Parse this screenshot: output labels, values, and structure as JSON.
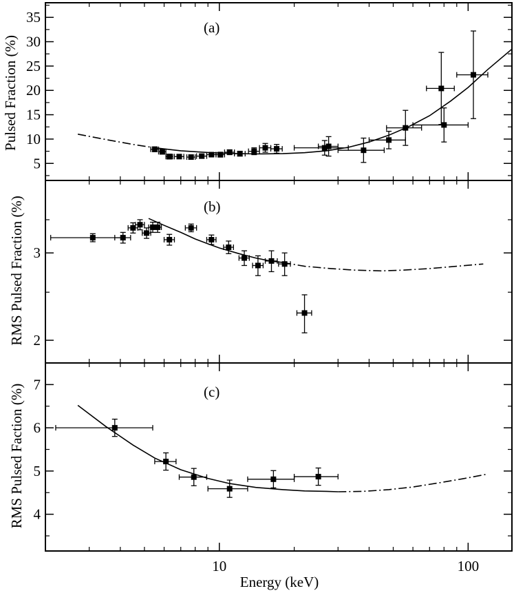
{
  "colors": {
    "line": "#000000",
    "background": "#ffffff"
  },
  "x_axis": {
    "label": "Energy (keV)",
    "scale": "log",
    "range": [
      2.0,
      150
    ],
    "major_ticks": [
      10,
      100
    ],
    "major_tick_labels": [
      "10",
      "100"
    ],
    "minor_ticks": [
      2,
      3,
      4,
      5,
      6,
      7,
      8,
      9,
      20,
      30,
      40,
      50,
      60,
      70,
      80,
      90
    ]
  },
  "chart_data": [
    {
      "type": "scatter",
      "panel_label": "(a)",
      "ylabel": "Pulsed Fraction (%)",
      "ylim": [
        1.5,
        38
      ],
      "y_ticks": [
        5,
        10,
        15,
        20,
        25,
        30,
        35
      ],
      "y_tick_labels": [
        "5",
        "10",
        "15",
        "20",
        "25",
        "30",
        "35"
      ],
      "y_minor_ticks": [
        2.5,
        7.5,
        12.5,
        17.5,
        22.5,
        27.5,
        32.5,
        37.5
      ],
      "y_scale": "linear",
      "points": [
        {
          "x": 5.5,
          "y": 7.9,
          "xerr": [
            0.2,
            0.2
          ],
          "yerr": 0.5
        },
        {
          "x": 5.9,
          "y": 7.4,
          "xerr": [
            0.2,
            0.2
          ],
          "yerr": 0.5
        },
        {
          "x": 6.3,
          "y": 6.4,
          "xerr": [
            0.2,
            0.2
          ],
          "yerr": 0.5
        },
        {
          "x": 6.9,
          "y": 6.4,
          "xerr": [
            0.3,
            0.3
          ],
          "yerr": 0.4
        },
        {
          "x": 7.7,
          "y": 6.3,
          "xerr": [
            0.3,
            0.3
          ],
          "yerr": 0.4
        },
        {
          "x": 8.5,
          "y": 6.5,
          "xerr": [
            0.4,
            0.4
          ],
          "yerr": 0.4
        },
        {
          "x": 9.3,
          "y": 6.8,
          "xerr": [
            0.4,
            0.4
          ],
          "yerr": 0.4
        },
        {
          "x": 10.1,
          "y": 6.8,
          "xerr": [
            0.4,
            0.4
          ],
          "yerr": 0.5
        },
        {
          "x": 11.0,
          "y": 7.3,
          "xerr": [
            0.5,
            0.5
          ],
          "yerr": 0.5
        },
        {
          "x": 12.1,
          "y": 7.0,
          "xerr": [
            0.6,
            0.6
          ],
          "yerr": 0.5
        },
        {
          "x": 13.8,
          "y": 7.5,
          "xerr": [
            0.7,
            0.7
          ],
          "yerr": 0.7
        },
        {
          "x": 15.3,
          "y": 8.2,
          "xerr": [
            0.8,
            0.8
          ],
          "yerr": 0.9
        },
        {
          "x": 17.0,
          "y": 8.0,
          "xerr": [
            0.9,
            0.9
          ],
          "yerr": 0.9
        },
        {
          "x": 26.5,
          "y": 8.2,
          "xerr": [
            6.5,
            6.5
          ],
          "yerr": 1.5
        },
        {
          "x": 27.5,
          "y": 8.5,
          "xerr": [
            2.5,
            2.5
          ],
          "yerr": 2.0
        },
        {
          "x": 38.0,
          "y": 7.7,
          "xerr": [
            8.0,
            8.0
          ],
          "yerr": 2.5
        },
        {
          "x": 48.0,
          "y": 9.8,
          "xerr": [
            8.0,
            8.0
          ],
          "yerr": 1.8
        },
        {
          "x": 56.0,
          "y": 12.3,
          "xerr": [
            9.0,
            9.0
          ],
          "yerr": 3.6
        },
        {
          "x": 78.0,
          "y": 20.4,
          "xerr": [
            10.0,
            10.0
          ],
          "yerr": 7.4
        },
        {
          "x": 80.0,
          "y": 12.9,
          "xerr": [
            20.0,
            20.0
          ],
          "yerr": 3.5
        },
        {
          "x": 105.0,
          "y": 23.2,
          "xerr": [
            15.0,
            15.0
          ],
          "yerr": 9.0
        }
      ],
      "model_curve_solid": [
        [
          5.5,
          8.2
        ],
        [
          7,
          7.6
        ],
        [
          9,
          7.25
        ],
        [
          11,
          7.05
        ],
        [
          14,
          6.95
        ],
        [
          18,
          7.0
        ],
        [
          22,
          7.2
        ],
        [
          27,
          7.6
        ],
        [
          33,
          8.3
        ],
        [
          40,
          9.4
        ],
        [
          48,
          10.8
        ],
        [
          58,
          12.6
        ],
        [
          70,
          14.8
        ],
        [
          85,
          17.8
        ],
        [
          100,
          20.6
        ],
        [
          120,
          24.3
        ],
        [
          150,
          28.5
        ]
      ],
      "model_curve_dashdot": [
        [
          2.7,
          11.0
        ],
        [
          3.5,
          9.9
        ],
        [
          4.5,
          8.9
        ],
        [
          5.5,
          8.2
        ]
      ]
    },
    {
      "type": "scatter",
      "panel_label": "(b)",
      "ylabel": "RMS Pulsed Fraction (%)",
      "ylim": [
        1.8,
        4.2
      ],
      "y_ticks": [
        2,
        3
      ],
      "y_tick_labels": [
        "2",
        "3"
      ],
      "y_minor_ticks": [
        2.5,
        3.5
      ],
      "y_scale": "log",
      "points": [
        {
          "x": 3.1,
          "y": 3.22,
          "xerr": [
            1.0,
            1.0
          ],
          "yerr": 0.06
        },
        {
          "x": 4.1,
          "y": 3.22,
          "xerr": [
            0.3,
            0.3
          ],
          "yerr": 0.08
        },
        {
          "x": 4.5,
          "y": 3.37,
          "xerr": [
            0.2,
            0.2
          ],
          "yerr": 0.08
        },
        {
          "x": 4.8,
          "y": 3.42,
          "xerr": [
            0.2,
            0.2
          ],
          "yerr": 0.08
        },
        {
          "x": 5.1,
          "y": 3.29,
          "xerr": [
            0.2,
            0.2
          ],
          "yerr": 0.08
        },
        {
          "x": 5.4,
          "y": 3.38,
          "xerr": [
            0.2,
            0.2
          ],
          "yerr": 0.08
        },
        {
          "x": 5.65,
          "y": 3.38,
          "xerr": [
            0.2,
            0.2
          ],
          "yerr": 0.08
        },
        {
          "x": 6.3,
          "y": 3.19,
          "xerr": [
            0.3,
            0.3
          ],
          "yerr": 0.08
        },
        {
          "x": 7.7,
          "y": 3.37,
          "xerr": [
            0.4,
            0.4
          ],
          "yerr": 0.06
        },
        {
          "x": 9.3,
          "y": 3.19,
          "xerr": [
            0.4,
            0.4
          ],
          "yerr": 0.07
        },
        {
          "x": 10.9,
          "y": 3.08,
          "xerr": [
            0.5,
            0.5
          ],
          "yerr": 0.09
        },
        {
          "x": 12.6,
          "y": 2.93,
          "xerr": [
            0.6,
            0.6
          ],
          "yerr": 0.1
        },
        {
          "x": 14.3,
          "y": 2.83,
          "xerr": [
            0.7,
            0.7
          ],
          "yerr": 0.13
        },
        {
          "x": 16.2,
          "y": 2.89,
          "xerr": [
            0.9,
            0.9
          ],
          "yerr": 0.14
        },
        {
          "x": 18.3,
          "y": 2.85,
          "xerr": [
            1.0,
            1.0
          ],
          "yerr": 0.15
        },
        {
          "x": 22.0,
          "y": 2.27,
          "xerr": [
            1.5,
            1.5
          ],
          "yerr": 0.2
        }
      ],
      "model_curve_solid": [
        [
          5.2,
          3.52
        ],
        [
          6,
          3.41
        ],
        [
          7,
          3.3
        ],
        [
          8,
          3.2
        ],
        [
          9,
          3.13
        ],
        [
          10,
          3.07
        ],
        [
          12,
          2.99
        ],
        [
          14,
          2.93
        ],
        [
          16,
          2.89
        ],
        [
          18,
          2.87
        ]
      ],
      "model_curve_dashdot": [
        [
          18,
          2.87
        ],
        [
          22,
          2.82
        ],
        [
          28,
          2.79
        ],
        [
          35,
          2.77
        ],
        [
          45,
          2.76
        ],
        [
          55,
          2.77
        ],
        [
          70,
          2.79
        ],
        [
          90,
          2.82
        ],
        [
          115,
          2.85
        ]
      ]
    },
    {
      "type": "scatter",
      "panel_label": "(c)",
      "ylabel": "RMS Pulsed Faction (%)",
      "ylim": [
        3.15,
        7.5
      ],
      "y_ticks": [
        4,
        5,
        6,
        7
      ],
      "y_tick_labels": [
        "4",
        "5",
        "6",
        "7"
      ],
      "y_minor_ticks": [
        3.5,
        4.5,
        5.5,
        6.5
      ],
      "y_scale": "linear",
      "points": [
        {
          "x": 3.8,
          "y": 6.0,
          "xerr": [
            1.6,
            1.6
          ],
          "yerr": 0.2
        },
        {
          "x": 6.1,
          "y": 5.22,
          "xerr": [
            0.6,
            0.6
          ],
          "yerr": 0.2
        },
        {
          "x": 7.9,
          "y": 4.86,
          "xerr": [
            1.0,
            1.0
          ],
          "yerr": 0.2
        },
        {
          "x": 11.0,
          "y": 4.59,
          "xerr": [
            2.0,
            2.0
          ],
          "yerr": 0.2
        },
        {
          "x": 16.5,
          "y": 4.81,
          "xerr": [
            3.5,
            3.5
          ],
          "yerr": 0.2
        },
        {
          "x": 25.0,
          "y": 4.87,
          "xerr": [
            5.0,
            5.0
          ],
          "yerr": 0.2
        }
      ],
      "model_curve_solid": [
        [
          2.7,
          6.52
        ],
        [
          3.5,
          6.03
        ],
        [
          4.5,
          5.6
        ],
        [
          5.5,
          5.3
        ],
        [
          7,
          5.03
        ],
        [
          9,
          4.83
        ],
        [
          11,
          4.71
        ],
        [
          14,
          4.62
        ],
        [
          18,
          4.57
        ],
        [
          22,
          4.54
        ],
        [
          27,
          4.53
        ],
        [
          30,
          4.52
        ]
      ],
      "model_curve_dashdot": [
        [
          30,
          4.52
        ],
        [
          38,
          4.53
        ],
        [
          48,
          4.57
        ],
        [
          60,
          4.63
        ],
        [
          75,
          4.72
        ],
        [
          95,
          4.82
        ],
        [
          120,
          4.93
        ]
      ]
    }
  ]
}
